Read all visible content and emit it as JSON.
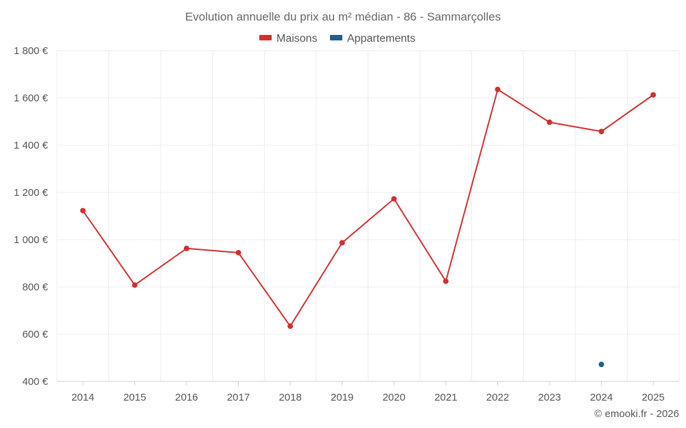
{
  "chart_data": {
    "type": "line",
    "title": "Evolution annuelle du prix au m² médian - 86 - Sammarçolles",
    "categories": [
      "2014",
      "2015",
      "2016",
      "2017",
      "2018",
      "2019",
      "2020",
      "2021",
      "2022",
      "2023",
      "2024",
      "2025"
    ],
    "series": [
      {
        "name": "Maisons",
        "color": "#d32f2f",
        "values": [
          1123,
          808,
          963,
          945,
          634,
          987,
          1173,
          824,
          1636,
          1497,
          1458,
          1613
        ]
      },
      {
        "name": "Appartements",
        "color": "#1a5f96",
        "values": [
          null,
          null,
          null,
          null,
          null,
          null,
          null,
          null,
          null,
          null,
          472,
          null
        ]
      }
    ],
    "ylim": [
      400,
      1800
    ],
    "yticks": [
      400,
      600,
      800,
      1000,
      1200,
      1400,
      1600,
      1800
    ],
    "ytick_labels": [
      "400 €",
      "600 €",
      "800 €",
      "1 000 €",
      "1 200 €",
      "1 400 €",
      "1 600 €",
      "1 800 €"
    ],
    "xlabel": "",
    "ylabel": "",
    "grid": true,
    "legend_position": "top-center"
  },
  "credit": "© emooki.fr - 2026"
}
